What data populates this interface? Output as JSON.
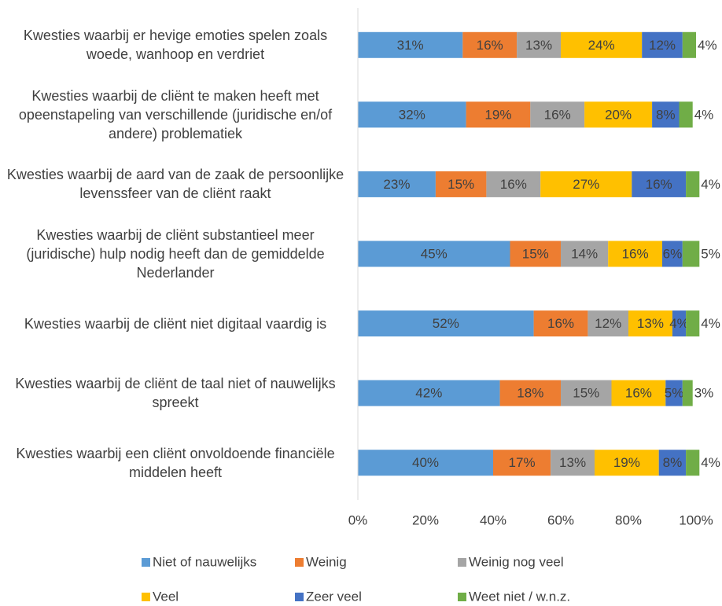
{
  "chart_data": {
    "type": "stacked-barh",
    "categories": [
      "Kwesties waarbij er hevige emoties spelen zoals woede, wanhoop en verdriet",
      "Kwesties waarbij de cliënt te maken heeft met opeenstapeling van verschillende (juridische en/of andere) problematiek",
      "Kwesties waarbij de aard van de zaak de persoonlijke levenssfeer van de cliënt raakt",
      "Kwesties waarbij de cliënt substantieel meer (juridische) hulp nodig heeft dan de gemiddelde Nederlander",
      "Kwesties waarbij de cliënt niet digitaal vaardig is",
      "Kwesties waarbij de cliënt de taal niet of nauwelijks spreekt",
      "Kwesties waarbij een cliënt onvoldoende financiële middelen heeft"
    ],
    "series": [
      {
        "name": "Niet of nauwelijks",
        "color": "#5b9bd5",
        "values": [
          31,
          32,
          23,
          45,
          52,
          42,
          40
        ],
        "value_labels": [
          "31%",
          "32%",
          "23%",
          "45%",
          "52%",
          "42%",
          "40%"
        ]
      },
      {
        "name": "Weinig",
        "color": "#ed7d31",
        "values": [
          16,
          19,
          15,
          15,
          16,
          18,
          17
        ],
        "value_labels": [
          "16%",
          "19%",
          "15%",
          "15%",
          "16%",
          "18%",
          "17%"
        ]
      },
      {
        "name": "Weinig nog veel",
        "color": "#a5a5a5",
        "values": [
          13,
          16,
          16,
          14,
          12,
          15,
          13
        ],
        "value_labels": [
          "13%",
          "16%",
          "16%",
          "14%",
          "12%",
          "15%",
          "13%"
        ]
      },
      {
        "name": "Veel",
        "color": "#ffc000",
        "values": [
          24,
          20,
          27,
          16,
          13,
          16,
          19
        ],
        "value_labels": [
          "24%",
          "20%",
          "27%",
          "16%",
          "13%",
          "16%",
          "19%"
        ]
      },
      {
        "name": "Zeer veel",
        "color": "#4472c4",
        "values": [
          12,
          8,
          16,
          6,
          4,
          5,
          8
        ],
        "value_labels": [
          "12%",
          "8%",
          "16%",
          "6%",
          "4%",
          "5%",
          "8%"
        ]
      },
      {
        "name": "Weet niet / w.n.z.",
        "color": "#70ad47",
        "values": [
          4,
          4,
          4,
          5,
          4,
          3,
          4
        ],
        "value_labels": [
          "4%",
          "4%",
          "4%",
          "5%",
          "4%",
          "3%",
          "4%"
        ]
      }
    ],
    "xlim": [
      0,
      100
    ],
    "xticks": [
      {
        "value": 0,
        "label": "0%"
      },
      {
        "value": 20,
        "label": "20%"
      },
      {
        "value": 40,
        "label": "40%"
      },
      {
        "value": 60,
        "label": "60%"
      },
      {
        "value": 80,
        "label": "80%"
      },
      {
        "value": 100,
        "label": "100%"
      }
    ],
    "grid": false,
    "legend": "bottom"
  }
}
